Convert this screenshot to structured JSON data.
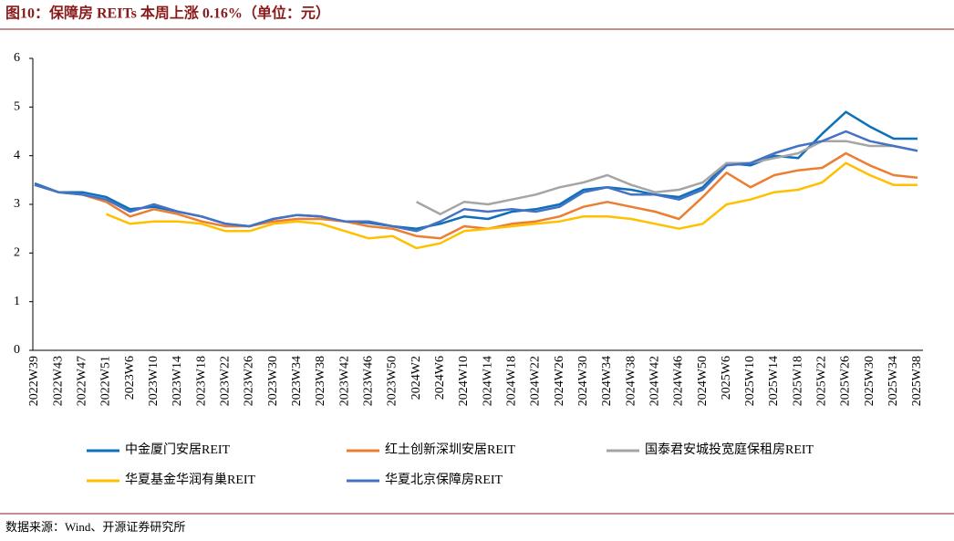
{
  "chart_data": {
    "type": "line",
    "title": "图10：保障房 REITs 本周上涨 0.16%（单位：元）",
    "source": "数据来源：Wind、开源证券研究所",
    "categories": [
      "2022W39",
      "2022W43",
      "2022W47",
      "2022W51",
      "2023W6",
      "2023W10",
      "2023W14",
      "2023W18",
      "2023W22",
      "2023W26",
      "2023W30",
      "2023W34",
      "2023W38",
      "2023W42",
      "2023W46",
      "2023W50",
      "2024W2",
      "2024W6",
      "2024W10",
      "2024W14",
      "2024W18",
      "2024W22",
      "2024W26",
      "2024W30",
      "2024W34",
      "2024W38",
      "2024W42",
      "2024W46",
      "2024W50",
      "2025W6",
      "2025W10",
      "2025W14",
      "2025W18",
      "2025W22",
      "2025W26",
      "2025W30",
      "2025W34",
      "2025W38"
    ],
    "series": [
      {
        "name": "中金厦门安居REIT",
        "color": "#0e6fba",
        "values": [
          3.43,
          3.25,
          3.25,
          3.15,
          2.9,
          2.95,
          2.85,
          2.75,
          2.6,
          2.55,
          2.7,
          2.78,
          2.75,
          2.65,
          2.62,
          2.55,
          2.5,
          2.6,
          2.75,
          2.7,
          2.85,
          2.9,
          3.0,
          3.3,
          3.35,
          3.3,
          3.2,
          3.15,
          3.35,
          3.85,
          3.8,
          4.0,
          3.95,
          4.45,
          4.9,
          4.6,
          4.35,
          4.35
        ]
      },
      {
        "name": "红土创新深圳安居REIT",
        "color": "#ed7d31",
        "values": [
          3.4,
          3.25,
          3.2,
          3.05,
          2.75,
          2.9,
          2.8,
          2.65,
          2.55,
          2.55,
          2.65,
          2.7,
          2.7,
          2.65,
          2.55,
          2.5,
          2.35,
          2.3,
          2.55,
          2.5,
          2.6,
          2.65,
          2.75,
          2.95,
          3.05,
          2.95,
          2.85,
          2.7,
          3.15,
          3.65,
          3.35,
          3.6,
          3.7,
          3.75,
          4.05,
          3.8,
          3.6,
          3.55
        ]
      },
      {
        "name": "国泰君安城投宽庭保租房REIT",
        "color": "#a5a5a5",
        "values": [
          null,
          null,
          null,
          null,
          null,
          null,
          null,
          null,
          null,
          null,
          null,
          null,
          null,
          null,
          null,
          null,
          3.05,
          2.8,
          3.05,
          3.0,
          3.1,
          3.2,
          3.35,
          3.45,
          3.6,
          3.4,
          3.25,
          3.3,
          3.45,
          3.85,
          3.85,
          3.95,
          4.05,
          4.3,
          4.3,
          4.2,
          4.2,
          4.1
        ]
      },
      {
        "name": "华夏基金华润有巢REIT",
        "color": "#ffc000",
        "values": [
          null,
          null,
          null,
          2.8,
          2.6,
          2.65,
          2.65,
          2.6,
          2.45,
          2.45,
          2.6,
          2.65,
          2.6,
          2.45,
          2.3,
          2.35,
          2.1,
          2.2,
          2.45,
          2.5,
          2.55,
          2.6,
          2.65,
          2.75,
          2.75,
          2.7,
          2.6,
          2.5,
          2.6,
          3.0,
          3.1,
          3.25,
          3.3,
          3.45,
          3.85,
          3.6,
          3.4,
          3.4
        ]
      },
      {
        "name": "华夏北京保障房REIT",
        "color": "#4472c4",
        "values": [
          3.4,
          3.25,
          3.2,
          3.1,
          2.85,
          3.0,
          2.85,
          2.75,
          2.6,
          2.55,
          2.7,
          2.78,
          2.75,
          2.65,
          2.65,
          2.55,
          2.45,
          2.65,
          2.9,
          2.85,
          2.9,
          2.85,
          2.95,
          3.25,
          3.35,
          3.2,
          3.2,
          3.1,
          3.3,
          3.8,
          3.85,
          4.05,
          4.2,
          4.3,
          4.5,
          4.3,
          4.2,
          4.1
        ]
      }
    ],
    "ylim": [
      0,
      6
    ],
    "yticks": [
      0,
      1,
      2,
      3,
      4,
      5,
      6
    ],
    "grid": false
  }
}
